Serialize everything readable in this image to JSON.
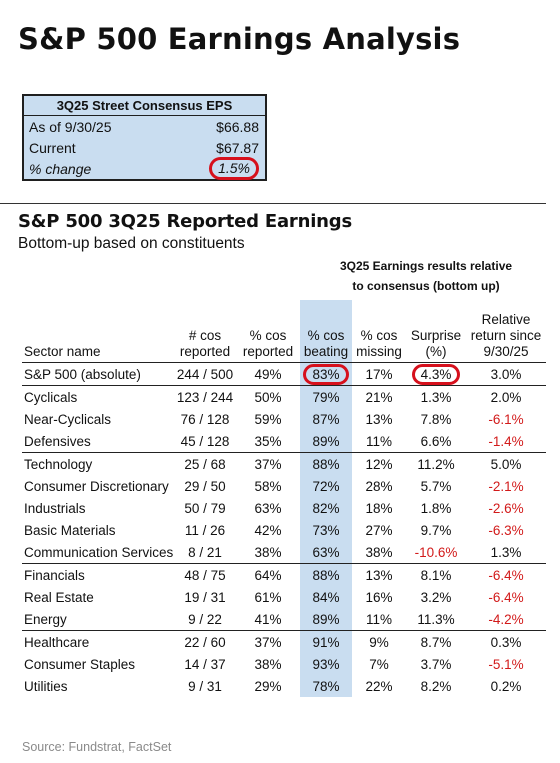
{
  "title": "S&P 500 Earnings Analysis",
  "consensus": {
    "header": "3Q25 Street Consensus EPS",
    "rows": [
      {
        "label": "As of 9/30/25",
        "value": "$66.88"
      },
      {
        "label": "Current",
        "value": "$67.87"
      },
      {
        "label": "% change",
        "value": "1.5%"
      }
    ]
  },
  "table_section": {
    "title": "S&P 500 3Q25 Reported Earnings",
    "subtitle": "Bottom-up based on constituents",
    "group_caption_line1": "3Q25 Earnings results relative",
    "group_caption_line2": "to consensus (bottom up)",
    "columns": [
      {
        "line1": "",
        "line2": "Sector name"
      },
      {
        "line1": "# cos",
        "line2": "reported"
      },
      {
        "line1": "% cos",
        "line2": "reported"
      },
      {
        "line1": "% cos",
        "line2": "beating"
      },
      {
        "line1": "% cos",
        "line2": "missing"
      },
      {
        "line1": "Surprise",
        "line2": "(%)"
      },
      {
        "line1": "Relative",
        "line2": "return since",
        "line3": "9/30/25"
      }
    ],
    "rows": [
      [
        "S&P 500 (absolute)",
        "244 / 500",
        "49%",
        "83%",
        "17%",
        "4.3%",
        "3.0%"
      ],
      [
        "Cyclicals",
        "123 / 244",
        "50%",
        "79%",
        "21%",
        "1.3%",
        "2.0%"
      ],
      [
        "Near-Cyclicals",
        "76 / 128",
        "59%",
        "87%",
        "13%",
        "7.8%",
        "-6.1%"
      ],
      [
        "Defensives",
        "45 / 128",
        "35%",
        "89%",
        "11%",
        "6.6%",
        "-1.4%"
      ],
      [
        "Technology",
        "25 / 68",
        "37%",
        "88%",
        "12%",
        "11.2%",
        "5.0%"
      ],
      [
        "Consumer Discretionary",
        "29 / 50",
        "58%",
        "72%",
        "28%",
        "5.7%",
        "-2.1%"
      ],
      [
        "Industrials",
        "50 / 79",
        "63%",
        "82%",
        "18%",
        "1.8%",
        "-2.6%"
      ],
      [
        "Basic Materials",
        "11 / 26",
        "42%",
        "73%",
        "27%",
        "9.7%",
        "-6.3%"
      ],
      [
        "Communication Services",
        "8 / 21",
        "38%",
        "63%",
        "38%",
        "-10.6%",
        "1.3%"
      ],
      [
        "Financials",
        "48 / 75",
        "64%",
        "88%",
        "13%",
        "8.1%",
        "-6.4%"
      ],
      [
        "Real Estate",
        "19 / 31",
        "61%",
        "84%",
        "16%",
        "3.2%",
        "-6.4%"
      ],
      [
        "Energy",
        "9 / 22",
        "41%",
        "89%",
        "11%",
        "11.3%",
        "-4.2%"
      ],
      [
        "Healthcare",
        "22 / 60",
        "37%",
        "91%",
        "9%",
        "8.7%",
        "0.3%"
      ],
      [
        "Consumer Staples",
        "14 / 37",
        "38%",
        "93%",
        "7%",
        "3.7%",
        "-5.1%"
      ],
      [
        "Utilities",
        "9 / 31",
        "29%",
        "78%",
        "22%",
        "8.2%",
        "0.2%"
      ]
    ]
  },
  "source": "Source: Fundstrat, FactSet",
  "colors": {
    "highlight": "#c9ddf0",
    "circle": "#d6101c",
    "negative": "#d21a1a"
  }
}
